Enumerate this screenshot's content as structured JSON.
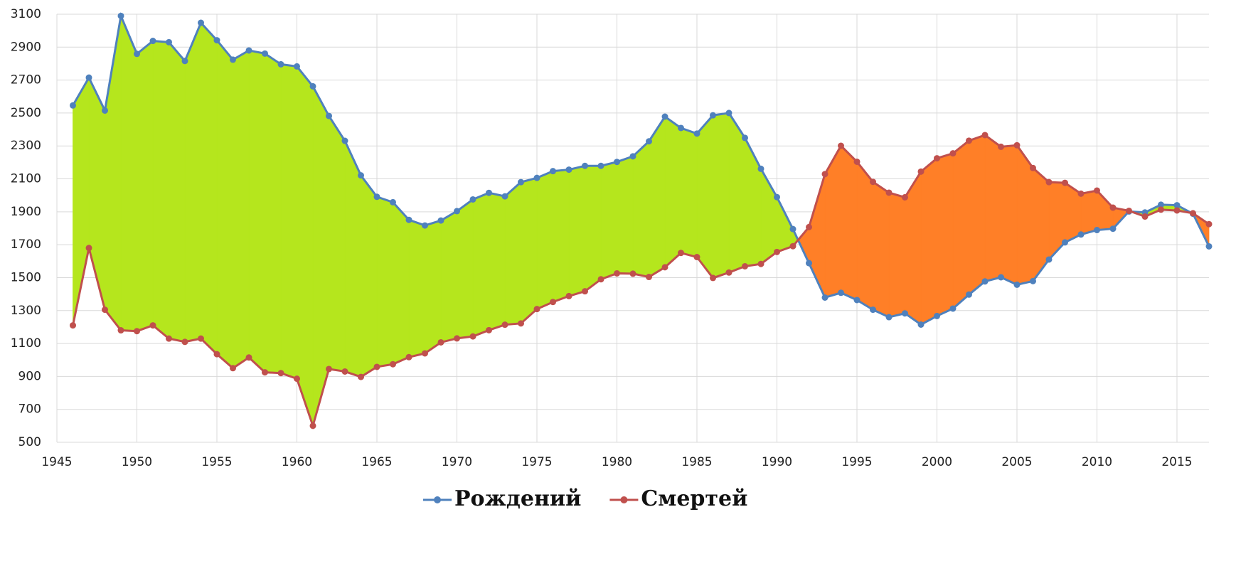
{
  "chart_data": {
    "type": "line",
    "x": [
      1946,
      1947,
      1948,
      1949,
      1950,
      1951,
      1952,
      1953,
      1954,
      1955,
      1956,
      1957,
      1958,
      1959,
      1960,
      1961,
      1962,
      1963,
      1964,
      1965,
      1966,
      1967,
      1968,
      1969,
      1970,
      1971,
      1972,
      1973,
      1974,
      1975,
      1976,
      1977,
      1978,
      1979,
      1980,
      1981,
      1982,
      1983,
      1984,
      1985,
      1986,
      1987,
      1988,
      1989,
      1990,
      1991,
      1992,
      1993,
      1994,
      1995,
      1996,
      1997,
      1998,
      1999,
      2000,
      2001,
      2002,
      2003,
      2004,
      2005,
      2006,
      2007,
      2008,
      2009,
      2010,
      2011,
      2012,
      2013,
      2014,
      2015,
      2016,
      2017
    ],
    "series": [
      {
        "name": "Рождений",
        "color": "#4f81bd",
        "values": [
          2546,
          2715,
          2515,
          3090,
          2859,
          2938,
          2930,
          2816,
          3048,
          2942,
          2824,
          2880,
          2861,
          2796,
          2783,
          2662,
          2482,
          2331,
          2121,
          1991,
          1958,
          1851,
          1817,
          1847,
          1904,
          1975,
          2015,
          1994,
          2080,
          2106,
          2147,
          2156,
          2179,
          2179,
          2203,
          2237,
          2328,
          2478,
          2409,
          2375,
          2486,
          2500,
          2349,
          2161,
          1989,
          1795,
          1588,
          1379,
          1408,
          1364,
          1305,
          1260,
          1283,
          1215,
          1267,
          1312,
          1397,
          1477,
          1502,
          1457,
          1479,
          1610,
          1714,
          1762,
          1789,
          1797,
          1902,
          1896,
          1943,
          1940,
          1888,
          1690
        ]
      },
      {
        "name": "Смертей",
        "color": "#c0504d",
        "values": [
          1210,
          1680,
          1305,
          1180,
          1175,
          1210,
          1130,
          1110,
          1130,
          1035,
          950,
          1015,
          925,
          920,
          886,
          600,
          945,
          930,
          897,
          958,
          974,
          1017,
          1040,
          1107,
          1131,
          1143,
          1181,
          1214,
          1222,
          1309,
          1352,
          1388,
          1417,
          1490,
          1526,
          1524,
          1504,
          1563,
          1650,
          1625,
          1498,
          1531,
          1569,
          1583,
          1656,
          1691,
          1807,
          2129,
          2301,
          2204,
          2082,
          2016,
          1988,
          2144,
          2225,
          2255,
          2332,
          2366,
          2295,
          2304,
          2166,
          2080,
          2076,
          2010,
          2029,
          1925,
          1906,
          1871,
          1913,
          1908,
          1891,
          1825
        ]
      }
    ],
    "fill_colors": {
      "above": "#b5e61d",
      "below": "#ff7f27"
    },
    "xlim": [
      1945,
      2017
    ],
    "xticks": [
      1945,
      1950,
      1955,
      1960,
      1965,
      1970,
      1975,
      1980,
      1985,
      1990,
      1995,
      2000,
      2005,
      2010,
      2015
    ],
    "ylim": [
      500,
      3100
    ],
    "yticks": [
      500,
      700,
      900,
      1100,
      1300,
      1500,
      1700,
      1900,
      2100,
      2300,
      2500,
      2700,
      2900,
      3100
    ],
    "grid": true,
    "legend": "bottom"
  }
}
